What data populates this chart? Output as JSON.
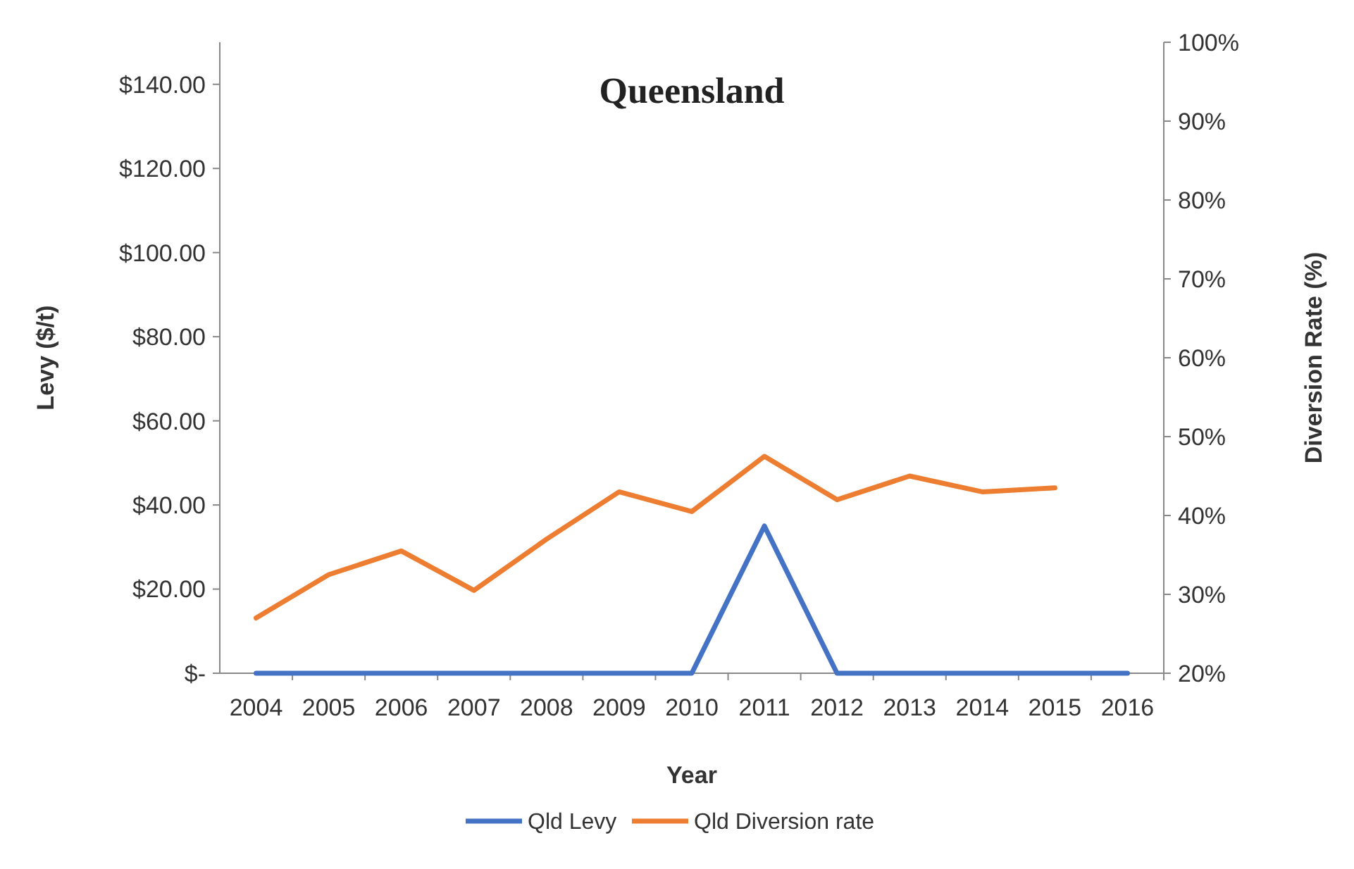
{
  "chart_data": {
    "type": "line",
    "title": "Queensland",
    "xlabel": "Year",
    "ylabel": "Levy ($/t)",
    "y2label": "Diversion Rate (%)",
    "categories": [
      "2004",
      "2005",
      "2006",
      "2007",
      "2008",
      "2009",
      "2010",
      "2011",
      "2012",
      "2013",
      "2014",
      "2015",
      "2016"
    ],
    "series": [
      {
        "name": "Qld Levy",
        "color": "#4472c4",
        "values": [
          0,
          0,
          0,
          0,
          0,
          0,
          0,
          35,
          0,
          0,
          0,
          0,
          0
        ]
      },
      {
        "name": "Qld Diversion rate",
        "color": "#ed7d31",
        "axis": "y2",
        "values": [
          27,
          32.5,
          35.5,
          30.5,
          37,
          43,
          40.5,
          47.5,
          42,
          45,
          43,
          43.5,
          null
        ]
      }
    ],
    "ylim": [
      0,
      150
    ],
    "yticks": [
      {
        "value": 0,
        "label": "$-"
      },
      {
        "value": 20,
        "label": "$20.00"
      },
      {
        "value": 40,
        "label": "$40.00"
      },
      {
        "value": 60,
        "label": "$60.00"
      },
      {
        "value": 80,
        "label": "$80.00"
      },
      {
        "value": 100,
        "label": "$100.00"
      },
      {
        "value": 120,
        "label": "$120.00"
      },
      {
        "value": 140,
        "label": "$140.00"
      }
    ],
    "y2lim": [
      20,
      100
    ],
    "y2ticks": [
      {
        "value": 20,
        "label": "20%"
      },
      {
        "value": 30,
        "label": "30%"
      },
      {
        "value": 40,
        "label": "40%"
      },
      {
        "value": 50,
        "label": "50%"
      },
      {
        "value": 60,
        "label": "60%"
      },
      {
        "value": 70,
        "label": "70%"
      },
      {
        "value": 80,
        "label": "80%"
      },
      {
        "value": 90,
        "label": "90%"
      },
      {
        "value": 100,
        "label": "100%"
      }
    ],
    "grid": false,
    "legend": "bottom",
    "marker": "none",
    "line_style": "solid"
  }
}
